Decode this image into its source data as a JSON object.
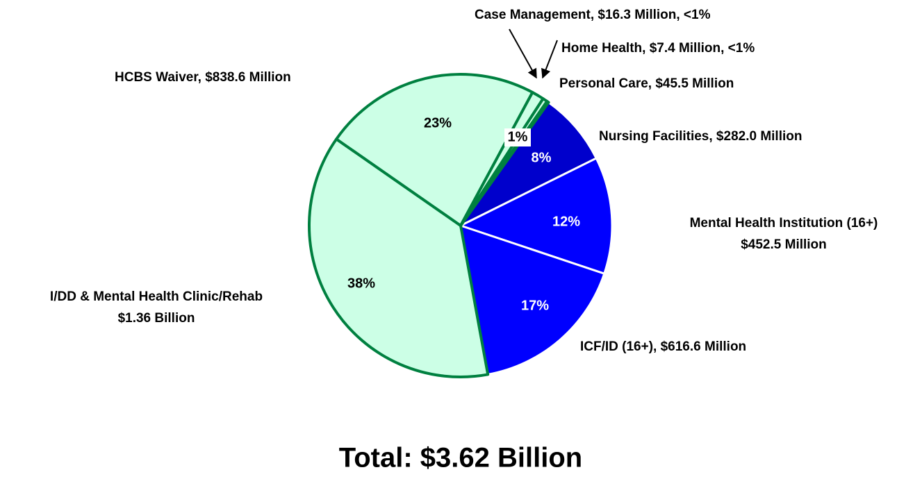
{
  "chart_data": {
    "type": "pie",
    "title": "Total: $3.62 Billion",
    "categories": [
      [
        "Nursing Facilities, $282.0 Million"
      ],
      [
        "Mental Health Institution (16+)",
        "$452.5 Million"
      ],
      [
        "ICF/ID (16+), $616.6 Million"
      ],
      [
        "I/DD & Mental Health Clinic/Rehab",
        "$1.36 Billion"
      ],
      [
        "HCBS Waiver, $838.6 Million"
      ],
      [
        "Personal Care, $45.5 Million"
      ],
      [
        "Case Management, $16.3 Million, <1%"
      ],
      [
        "Home Health, $7.4 Million, <1%"
      ]
    ],
    "values": [
      7.8,
      12.5,
      17.0,
      37.6,
      23.2,
      1.3,
      0.5,
      0.2
    ],
    "value_labels": [
      "8%",
      "12%",
      "17%",
      "38%",
      "23%",
      "1%",
      null,
      null
    ],
    "colors": [
      "#0000cc",
      "#0000ff",
      "#0000ff",
      "#ccffe6",
      "#ccffe6",
      "#ccffe6",
      "#ccffe6",
      "#ccffe6"
    ],
    "edge_colors": [
      "#ffffff",
      "#ffffff",
      "#ffffff",
      "#008040",
      "#008040",
      "#008040",
      "#008040",
      "#008040"
    ]
  }
}
